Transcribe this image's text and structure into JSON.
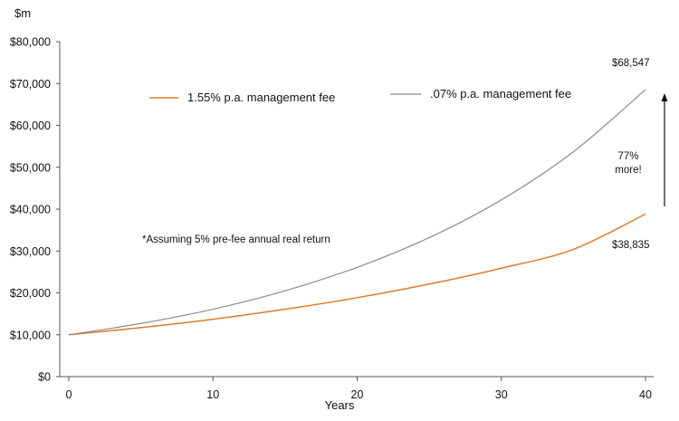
{
  "chart_data": {
    "type": "line",
    "ylabel": "$m",
    "xlabel": "Years",
    "xlim": [
      0,
      40
    ],
    "ylim": [
      0,
      80000
    ],
    "x_ticks": [
      0,
      10,
      20,
      30,
      40
    ],
    "x_tick_labels": [
      "0",
      "10",
      "20",
      "30",
      "40"
    ],
    "y_ticks": [
      0,
      10000,
      20000,
      30000,
      40000,
      50000,
      60000,
      70000,
      80000
    ],
    "y_tick_labels": [
      "$0",
      "$10,000",
      "$20,000",
      "$30,000",
      "$40,000",
      "$50,000",
      "$60,000",
      "$70,000",
      "$80,000"
    ],
    "grid": false,
    "legend_position": "top",
    "series": [
      {
        "name": "1.55% p.a. management fee",
        "color": "#e07b2a",
        "x": [
          0,
          5,
          10,
          15,
          20,
          25,
          30,
          35,
          40
        ],
        "y": [
          10000,
          11700,
          13700,
          16100,
          18850,
          22100,
          25900,
          30400,
          38835
        ]
      },
      {
        "name": ".07% p.a. management fee",
        "color": "#8c8c8c",
        "x": [
          0,
          5,
          10,
          15,
          20,
          25,
          30,
          35,
          40
        ],
        "y": [
          10000,
          12700,
          16100,
          20500,
          26100,
          33200,
          42200,
          53700,
          68547
        ]
      }
    ],
    "annotations": {
      "note": "*Assuming 5% pre-fee  annual real return",
      "top_end_label": "$68,547",
      "bottom_end_label": "$38,835",
      "diff_line1": "77%",
      "diff_line2": "more!"
    }
  }
}
